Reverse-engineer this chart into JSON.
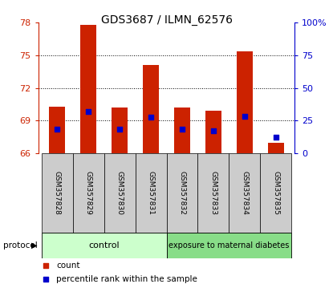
{
  "title": "GDS3687 / ILMN_62576",
  "samples": [
    "GSM357828",
    "GSM357829",
    "GSM357830",
    "GSM357831",
    "GSM357832",
    "GSM357833",
    "GSM357834",
    "GSM357835"
  ],
  "bar_tops": [
    70.3,
    77.8,
    70.2,
    74.1,
    70.2,
    69.9,
    75.4,
    67.0
  ],
  "bar_bottom": 66.0,
  "blue_values": [
    68.2,
    69.85,
    68.2,
    69.3,
    68.2,
    68.1,
    69.4,
    67.5
  ],
  "ylim_left": [
    66,
    78
  ],
  "ylim_right": [
    0,
    100
  ],
  "yticks_left": [
    66,
    69,
    72,
    75,
    78
  ],
  "yticks_right": [
    0,
    25,
    50,
    75,
    100
  ],
  "ytick_labels_right": [
    "0",
    "25",
    "50",
    "75",
    "100%"
  ],
  "bar_color": "#cc2200",
  "blue_color": "#0000cc",
  "group_control_label": "control",
  "group_diabetes_label": "exposure to maternal diabetes",
  "protocol_label": "protocol",
  "legend_count": "count",
  "legend_pct": "percentile rank within the sample",
  "control_bg": "#ccffcc",
  "diabetes_bg": "#88dd88",
  "xlabel_bg": "#cccccc",
  "plot_bg": "#ffffff",
  "title_fontsize": 10,
  "tick_fontsize": 8,
  "label_fontsize": 8
}
